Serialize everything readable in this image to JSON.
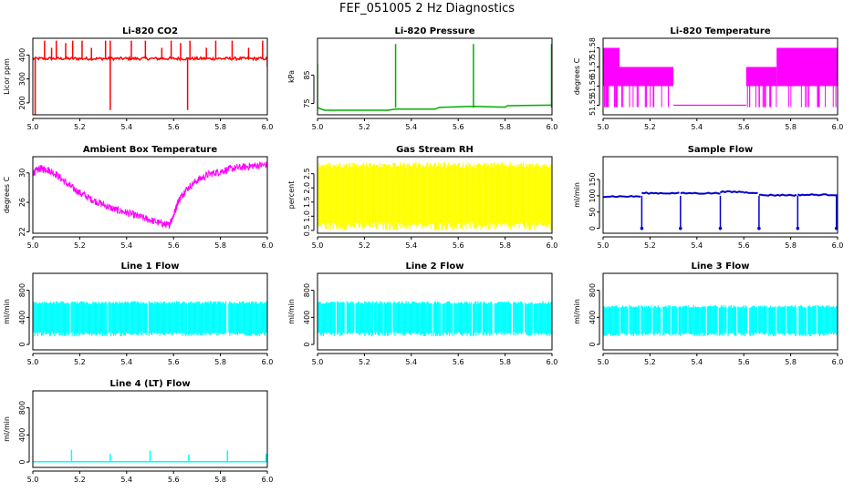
{
  "page": {
    "title": "FEF_051005  2 Hz Diagnostics"
  },
  "chart_data": [
    {
      "type": "line",
      "title": "Li-820 CO2",
      "ylabel": "Licor ppm",
      "color": "#ff0000",
      "xlim": [
        5.0,
        6.0
      ],
      "ylim": [
        150,
        470
      ],
      "xticks": [
        "5.0",
        "5.2",
        "5.4",
        "5.6",
        "5.8",
        "6.0"
      ],
      "yticks": [
        "200",
        "300",
        "400"
      ],
      "series": [
        {
          "baseline": 385,
          "noise": 6,
          "spikes": [
            [
              5.01,
              150
            ],
            [
              5.05,
              460
            ],
            [
              5.08,
              430
            ],
            [
              5.1,
              460
            ],
            [
              5.14,
              450
            ],
            [
              5.17,
              460
            ],
            [
              5.21,
              460
            ],
            [
              5.25,
              430
            ],
            [
              5.31,
              460
            ],
            [
              5.33,
              170
            ],
            [
              5.33,
              460
            ],
            [
              5.42,
              460
            ],
            [
              5.48,
              460
            ],
            [
              5.55,
              430
            ],
            [
              5.59,
              460
            ],
            [
              5.63,
              450
            ],
            [
              5.66,
              170
            ],
            [
              5.67,
              460
            ],
            [
              5.74,
              430
            ],
            [
              5.78,
              460
            ],
            [
              5.85,
              460
            ],
            [
              5.92,
              430
            ],
            [
              5.98,
              460
            ],
            [
              6.0,
              350
            ]
          ]
        }
      ]
    },
    {
      "type": "line",
      "title": "Li-820 Pressure",
      "ylabel": "kPa",
      "color": "#00b000",
      "xlim": [
        5.0,
        6.0
      ],
      "ylim": [
        71,
        98
      ],
      "xticks": [
        "5.0",
        "5.2",
        "5.4",
        "5.6",
        "5.8",
        "6.0"
      ],
      "yticks": [
        "75",
        "85"
      ],
      "series": [
        {
          "segments": [
            [
              5.0,
              73.5
            ],
            [
              5.03,
              72.6
            ],
            [
              5.3,
              72.6
            ],
            [
              5.333,
              73.0
            ],
            [
              5.5,
              73.0
            ],
            [
              5.52,
              73.6
            ],
            [
              5.665,
              74.0
            ],
            [
              5.8,
              73.7
            ],
            [
              5.81,
              74.2
            ],
            [
              6.0,
              74.4
            ]
          ],
          "spikes": [
            [
              5.0,
              89
            ],
            [
              5.333,
              96
            ],
            [
              5.665,
              96
            ],
            [
              5.998,
              96
            ]
          ]
        }
      ]
    },
    {
      "type": "line",
      "title": "Li-820 Temperature",
      "ylabel": "degrees C",
      "color": "#ff00ff",
      "xlim": [
        5.0,
        6.0
      ],
      "ylim": [
        51.545,
        51.585
      ],
      "xticks": [
        "5.0",
        "5.2",
        "5.4",
        "5.6",
        "5.8",
        "6.0"
      ],
      "yticks": [
        "51.55",
        "51.56",
        "51.57",
        "51.58"
      ],
      "series": [
        {
          "bands": [
            [
              5.0,
              5.07,
              51.56,
              51.58
            ],
            [
              5.07,
              5.3,
              51.56,
              51.57
            ],
            [
              5.61,
              5.74,
              51.56,
              51.57
            ],
            [
              5.74,
              6.0,
              51.56,
              51.58
            ]
          ],
          "floor": [
            [
              5.3,
              5.61,
              51.55
            ]
          ]
        }
      ]
    },
    {
      "type": "line",
      "title": "Ambient Box Temperature",
      "ylabel": "degrees C",
      "color": "#ff00ff",
      "xlim": [
        5.0,
        6.0
      ],
      "ylim": [
        21.8,
        32.2
      ],
      "xticks": [
        "5.0",
        "5.2",
        "5.4",
        "5.6",
        "5.8",
        "6.0"
      ],
      "yticks": [
        "22",
        "26",
        "30"
      ],
      "series": [
        {
          "x": [
            5.0,
            5.03,
            5.06,
            5.1,
            5.15,
            5.2,
            5.25,
            5.3,
            5.35,
            5.4,
            5.45,
            5.5,
            5.55,
            5.58,
            5.6,
            5.62,
            5.65,
            5.7,
            5.75,
            5.8,
            5.85,
            5.9,
            5.95,
            6.0
          ],
          "y": [
            30.0,
            30.6,
            30.5,
            29.8,
            28.4,
            27.3,
            26.4,
            25.7,
            25.0,
            24.6,
            24.1,
            23.6,
            23.1,
            22.9,
            24.2,
            26.2,
            27.6,
            29.0,
            29.8,
            30.2,
            30.6,
            30.8,
            31.0,
            31.1
          ],
          "noise": 0.5
        }
      ]
    },
    {
      "type": "line",
      "title": "Gas Stream RH",
      "ylabel": "percent",
      "color": "#ffff00",
      "xlim": [
        5.0,
        6.0
      ],
      "ylim": [
        0.4,
        3.1
      ],
      "xticks": [
        "5.0",
        "5.2",
        "5.4",
        "5.6",
        "5.8",
        "6.0"
      ],
      "yticks": [
        "0.5",
        "1.0",
        "1.5",
        "2.0",
        "2.5"
      ],
      "series": [
        {
          "band_low": 0.5,
          "band_high": 2.9
        }
      ]
    },
    {
      "type": "line",
      "title": "Sample Flow",
      "ylabel": "ml/min",
      "color": "#0000cc",
      "xlim": [
        5.0,
        6.0
      ],
      "ylim": [
        -15,
        220
      ],
      "xticks": [
        "5.0",
        "5.2",
        "5.4",
        "5.6",
        "5.8",
        "6.0"
      ],
      "yticks": [
        "0",
        "50",
        "100",
        "150"
      ],
      "series": [
        {
          "levels": [
            [
              5.0,
              5.165,
              98
            ],
            [
              5.165,
              5.33,
              108
            ],
            [
              5.33,
              5.5,
              108
            ],
            [
              5.5,
              5.6,
              112
            ],
            [
              5.6,
              5.665,
              110
            ],
            [
              5.665,
              5.83,
              102
            ],
            [
              5.83,
              6.0,
              103
            ]
          ],
          "drops": [
            5.165,
            5.33,
            5.5,
            5.665,
            5.83,
            5.995
          ]
        }
      ]
    },
    {
      "type": "line",
      "title": "Line 1 Flow",
      "ylabel": "ml/min",
      "color": "#00ffff",
      "xlim": [
        5.0,
        6.0
      ],
      "ylim": [
        -80,
        1050
      ],
      "xticks": [
        "5.0",
        "5.2",
        "5.4",
        "5.6",
        "5.8",
        "6.0"
      ],
      "yticks": [
        "0",
        "400",
        "800"
      ],
      "series": [
        {
          "band_low": 120,
          "band_high": 640,
          "gaps": [
            5.16,
            5.32,
            5.49,
            5.66,
            5.83
          ]
        }
      ]
    },
    {
      "type": "line",
      "title": "Line 2 Flow",
      "ylabel": "ml/min",
      "color": "#00ffff",
      "xlim": [
        5.0,
        6.0
      ],
      "ylim": [
        -80,
        1050
      ],
      "xticks": [
        "5.0",
        "5.2",
        "5.4",
        "5.6",
        "5.8",
        "6.0"
      ],
      "yticks": [
        "0",
        "400",
        "800"
      ],
      "series": [
        {
          "band_low": 120,
          "band_high": 640,
          "gaps": [
            5.16,
            5.32,
            5.49,
            5.66,
            5.83,
            5.08,
            5.12,
            5.24,
            5.28,
            5.53,
            5.58,
            5.7,
            5.75,
            5.88,
            5.92
          ]
        }
      ]
    },
    {
      "type": "line",
      "title": "Line 3 Flow",
      "ylabel": "ml/min",
      "color": "#00ffff",
      "xlim": [
        5.0,
        6.0
      ],
      "ylim": [
        -80,
        1050
      ],
      "xticks": [
        "5.0",
        "5.2",
        "5.4",
        "5.6",
        "5.8",
        "6.0"
      ],
      "yticks": [
        "0",
        "400",
        "800"
      ],
      "series": [
        {
          "band_low": 120,
          "band_high": 580,
          "gaps": [
            5.16,
            5.32,
            5.49,
            5.66,
            5.83,
            5.07,
            5.11,
            5.21,
            5.25,
            5.29,
            5.36,
            5.44,
            5.53,
            5.57,
            5.62,
            5.7,
            5.74,
            5.78,
            5.87,
            5.91
          ]
        }
      ]
    },
    {
      "type": "line",
      "title": "Line 4 (LT) Flow",
      "ylabel": "ml/min",
      "color": "#00ffff",
      "xlim": [
        5.0,
        6.0
      ],
      "ylim": [
        -80,
        1050
      ],
      "xticks": [
        "5.0",
        "5.2",
        "5.4",
        "5.6",
        "5.8",
        "6.0"
      ],
      "yticks": [
        "0",
        "400",
        "800"
      ],
      "series": [
        {
          "baseline": 5,
          "spikes": [
            [
              5.165,
              180
            ],
            [
              5.33,
              120
            ],
            [
              5.5,
              170
            ],
            [
              5.665,
              110
            ],
            [
              5.83,
              170
            ],
            [
              5.995,
              120
            ]
          ]
        }
      ]
    }
  ]
}
